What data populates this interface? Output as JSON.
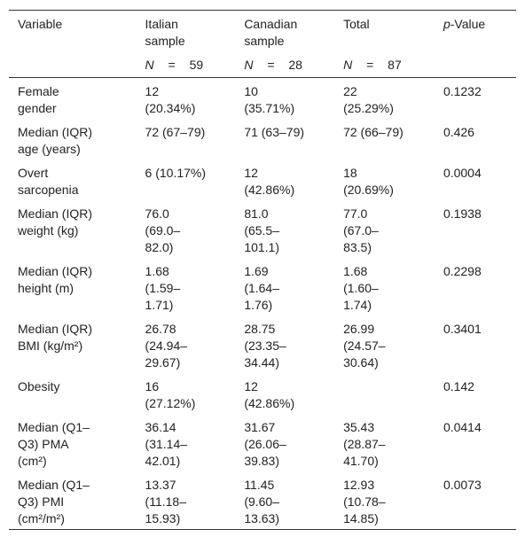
{
  "table": {
    "header": [
      "Variable",
      "Italian sample",
      "Canadian sample",
      "Total",
      "p-Value"
    ],
    "subheader": [
      null,
      "N = 59",
      "N = 28",
      "N = 87",
      null
    ],
    "rows": [
      [
        "Female gender",
        "12 (20.34%)",
        "10 (35.71%)",
        "22 (25.29%)",
        "0.1232"
      ],
      [
        "Median (IQR) age (years)",
        "72 (67–79)",
        "71 (63–79)",
        "72 (66–79)",
        "0.426"
      ],
      [
        "Overt sarcopenia",
        "6 (10.17%)",
        "12 (42.86%)",
        "18 (20.69%)",
        "0.0004"
      ],
      [
        "Median (IQR) weight (kg)",
        "76.0 (69.0–82.0)",
        "81.0 (65.5–101.1)",
        "77.0 (67.0–83.5)",
        "0.1938"
      ],
      [
        "Median (IQR) height (m)",
        "1.68 (1.59–1.71)",
        "1.69 (1.64–1.76)",
        "1.68 (1.60–1.74)",
        "0.2298"
      ],
      [
        "Median (IQR) BMI (kg/m²)",
        "26.78 (24.94–29.67)",
        "28.75 (23.35–34.44)",
        "26.99 (24.57–30.64)",
        "0.3401"
      ],
      [
        "Obesity",
        "16 (27.12%)",
        "12 (42.86%)",
        null,
        "0.142"
      ],
      [
        "Median (Q1–Q3) PMA (cm²)",
        "36.14 (31.14–42.01)",
        "31.67 (26.06–39.83)",
        "35.43 (28.87–41.70)",
        "0.0414"
      ],
      [
        "Median (Q1–Q3) PMI (cm²/m²)",
        "13.37 (11.18–15.93)",
        "11.45 (9.60–13.63)",
        "12.93 (10.78–14.85)",
        "0.0073"
      ]
    ]
  }
}
